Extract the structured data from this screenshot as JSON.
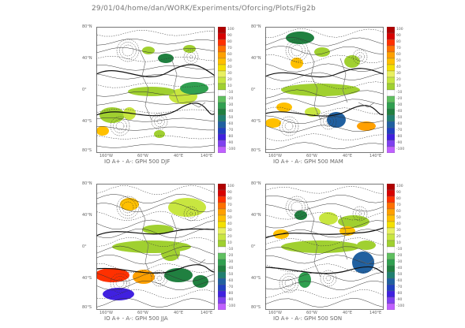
{
  "header": "29/01/04/home/dan/WORK/Experiments/Oforcing/Plots/Fig2b",
  "axes": {
    "y_labels": [
      "80°N",
      "40°N",
      "0°",
      "40°S",
      "80°S"
    ],
    "x_labels": [
      "160°W",
      "60°W",
      "40°E",
      "140°E"
    ]
  },
  "colorbar": {
    "labels": [
      "100",
      "90",
      "80",
      "70",
      "60",
      "50",
      "40",
      "30",
      "20",
      "10",
      "-10",
      "-20",
      "-30",
      "-40",
      "-50",
      "-60",
      "-70",
      "-80",
      "-90",
      "-100"
    ],
    "colors": [
      "#b00000",
      "#d80000",
      "#ff3000",
      "#ff7000",
      "#ffa000",
      "#ffc000",
      "#f4e000",
      "#e8f060",
      "#c8e640",
      "#a0d030",
      "#ffffff",
      "#60c060",
      "#30a050",
      "#208040",
      "#208070",
      "#2060a0",
      "#2040c0",
      "#4020e0",
      "#8040f0",
      "#c060ff"
    ]
  },
  "panels": [
    {
      "title": "IO A+ - A-: GPH 500 DJF"
    },
    {
      "title": "IO A+ - A-: GPH 500 MAM"
    },
    {
      "title": "IO A+ - A-: GPH 500 JJA"
    },
    {
      "title": "IO A+ - A-: GPH 500 SON"
    }
  ]
}
